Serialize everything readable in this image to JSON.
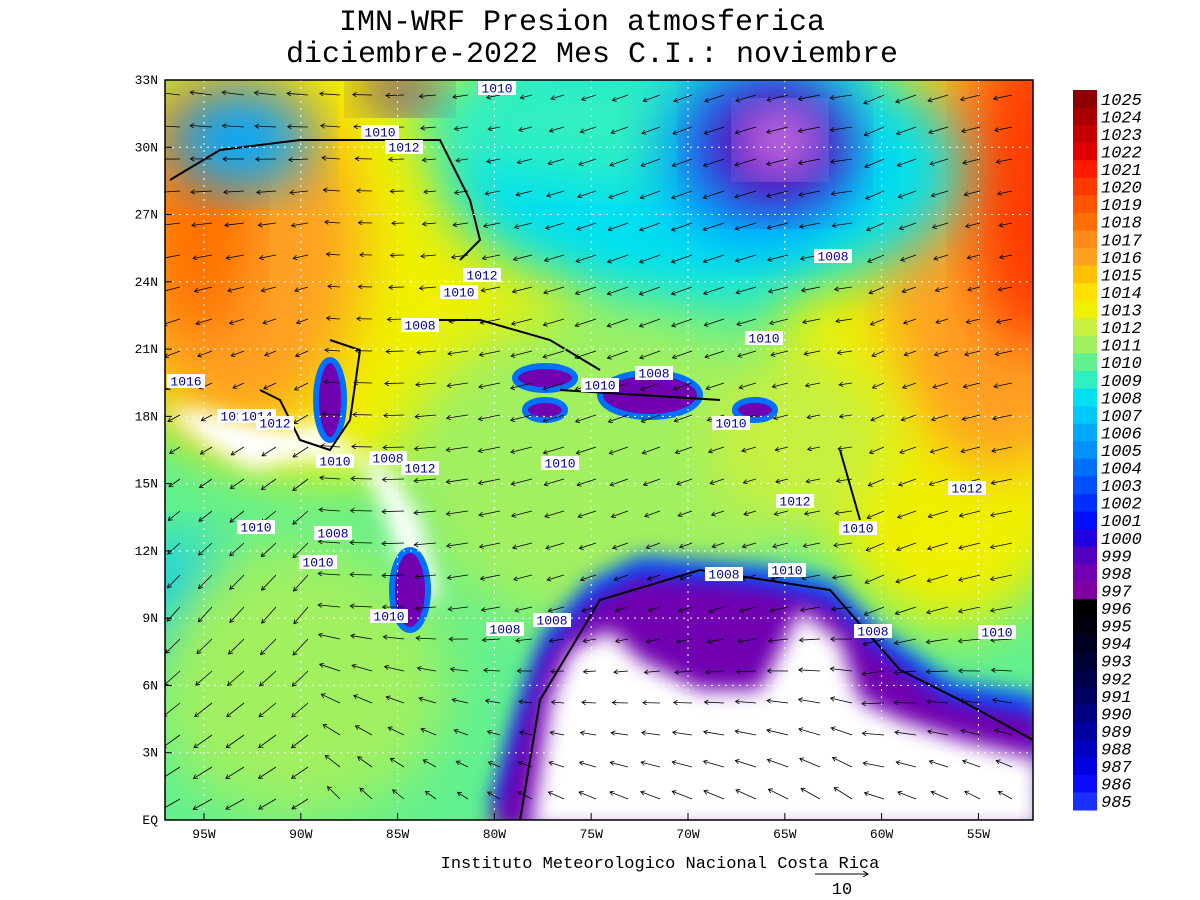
{
  "title": [
    "IMN-WRF  Presion atmosferica",
    "diciembre-2022 Mes C.I.: noviembre"
  ],
  "map": {
    "lat_labels": [
      "33N",
      "30N",
      "27N",
      "24N",
      "21N",
      "18N",
      "15N",
      "12N",
      "9N",
      "6N",
      "3N",
      "EQ"
    ],
    "lon_labels": [
      "95W",
      "90W",
      "85W",
      "80W",
      "75W",
      "70W",
      "65W",
      "60W",
      "55W"
    ],
    "contour_labels": [
      "1010",
      "1010",
      "1012",
      "1008",
      "1012",
      "1010",
      "1008",
      "1010",
      "1016",
      "1008",
      "1010",
      "1010",
      "1014",
      "1012",
      "1010",
      "1010",
      "1008",
      "1012",
      "1010",
      "1012",
      "1012",
      "1010",
      "1008",
      "1010",
      "1010",
      "1008",
      "1010",
      "1010",
      "1008",
      "1008",
      "1008",
      "1010"
    ]
  },
  "legend": {
    "labels": [
      "1025",
      "1024",
      "1023",
      "1022",
      "1021",
      "1020",
      "1019",
      "1018",
      "1017",
      "1016",
      "1015",
      "1014",
      "1013",
      "1012",
      "1011",
      "1010",
      "1009",
      "1008",
      "1007",
      "1006",
      "1005",
      "1004",
      "1003",
      "1002",
      "1001",
      "1000",
      "999",
      "998",
      "997",
      "996",
      "995",
      "994",
      "993",
      "992",
      "991",
      "990",
      "989",
      "988",
      "987",
      "986",
      "985"
    ],
    "colors": [
      "#8b0000",
      "#a80000",
      "#c40000",
      "#e00000",
      "#ff1a00",
      "#ff3a00",
      "#ff5500",
      "#ff7000",
      "#ff8c1a",
      "#ffa020",
      "#ffc000",
      "#ffe000",
      "#f0f000",
      "#c8f040",
      "#a0f060",
      "#60f090",
      "#30f0c0",
      "#00e0f0",
      "#00c8ff",
      "#00a8ff",
      "#0090ff",
      "#0070ff",
      "#0050ff",
      "#0030ff",
      "#0010ff",
      "#2000e0",
      "#5000c0",
      "#7000b0",
      "#8000a0",
      "#000000",
      "#00000f",
      "#000020",
      "#000035",
      "#00004a",
      "#000060",
      "#000080",
      "#0000a0",
      "#0000c0",
      "#0000e0",
      "#0a0aff",
      "#1a30ff"
    ]
  },
  "footer": "Instituto Meteorologico Nacional Costa Rica",
  "vector_scale": "10"
}
